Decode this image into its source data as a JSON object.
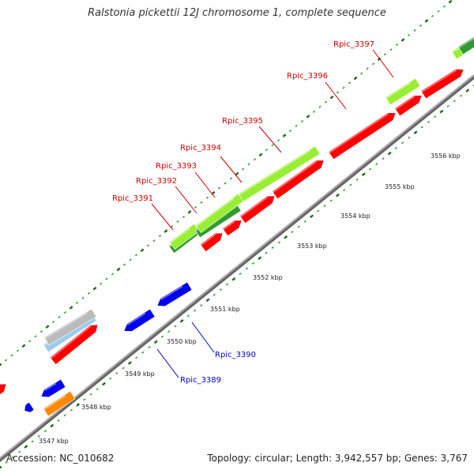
{
  "title": "Ralstonia pickettii 12J chromosome 1, complete sequence",
  "footer": {
    "accession": "Accession: NC_010682",
    "summary": "Topology: circular; Length: 3,942,557 bp; Genes: 3,767"
  },
  "ticks": [
    {
      "label": "3547 kbp"
    },
    {
      "label": "3548 kbp"
    },
    {
      "label": "3549 kbp"
    },
    {
      "label": "3550 kbp"
    },
    {
      "label": "3551 kbp"
    },
    {
      "label": "3552 kbp"
    },
    {
      "label": "3553 kbp"
    },
    {
      "label": "3554 kbp"
    },
    {
      "label": "3555 kbp"
    },
    {
      "label": "3556 kbp"
    }
  ],
  "gene_labels": [
    {
      "text": "Rpic_3389"
    },
    {
      "text": "Rpic_3390"
    },
    {
      "text": "Rpic_3391"
    },
    {
      "text": "Rpic_3392"
    },
    {
      "text": "Rpic_3393"
    },
    {
      "text": "Rpic_3394"
    },
    {
      "text": "Rpic_3395"
    },
    {
      "text": "Rpic_3396"
    },
    {
      "text": "Rpic_3397"
    }
  ],
  "colors": {
    "cds": "#ff0000",
    "cds_minus": "#0000ee",
    "orange": "#ff8800",
    "light_green": "#99ee33",
    "dark_green": "#339933",
    "light_blue": "#99ccee",
    "gray": "#bbbbbb",
    "backbone": "#888888",
    "tick_green": "#339933",
    "tick_dark": "#226622",
    "label_red": "#cc0000",
    "label_blue": "#0000cc"
  }
}
